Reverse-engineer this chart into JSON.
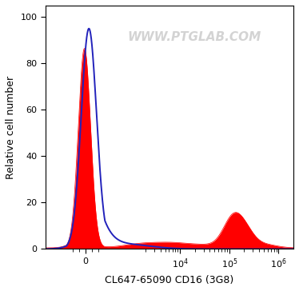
{
  "title": "",
  "xlabel": "CL647-65090 CD16 (3G8)",
  "ylabel": "Relative cell number",
  "watermark": "WWW.PTGLAB.COM",
  "ylim": [
    0,
    105
  ],
  "yticks": [
    0,
    20,
    40,
    60,
    80,
    100
  ],
  "background_color": "#ffffff",
  "plot_bg_color": "#ffffff",
  "blue_color": "#2222bb",
  "red_color": "#ff0000",
  "blue_linewidth": 1.4,
  "red_linewidth": 0.5,
  "linthresh": 300,
  "linscale": 0.35,
  "xlim_low": -800,
  "xlim_high": 2000000,
  "blue_peak_x": 0,
  "blue_peak_y": 95,
  "blue_sigma_log": 0.38,
  "red_peak1_x": 0,
  "red_peak1_y": 86,
  "red_sigma_log": 0.3,
  "red_peak2_x": 120000,
  "red_peak2_y": 13,
  "red_sigma2_log": 0.18,
  "red_shoulder_x": 220000,
  "red_shoulder_y": 5,
  "red_shoulder_log": 0.15
}
